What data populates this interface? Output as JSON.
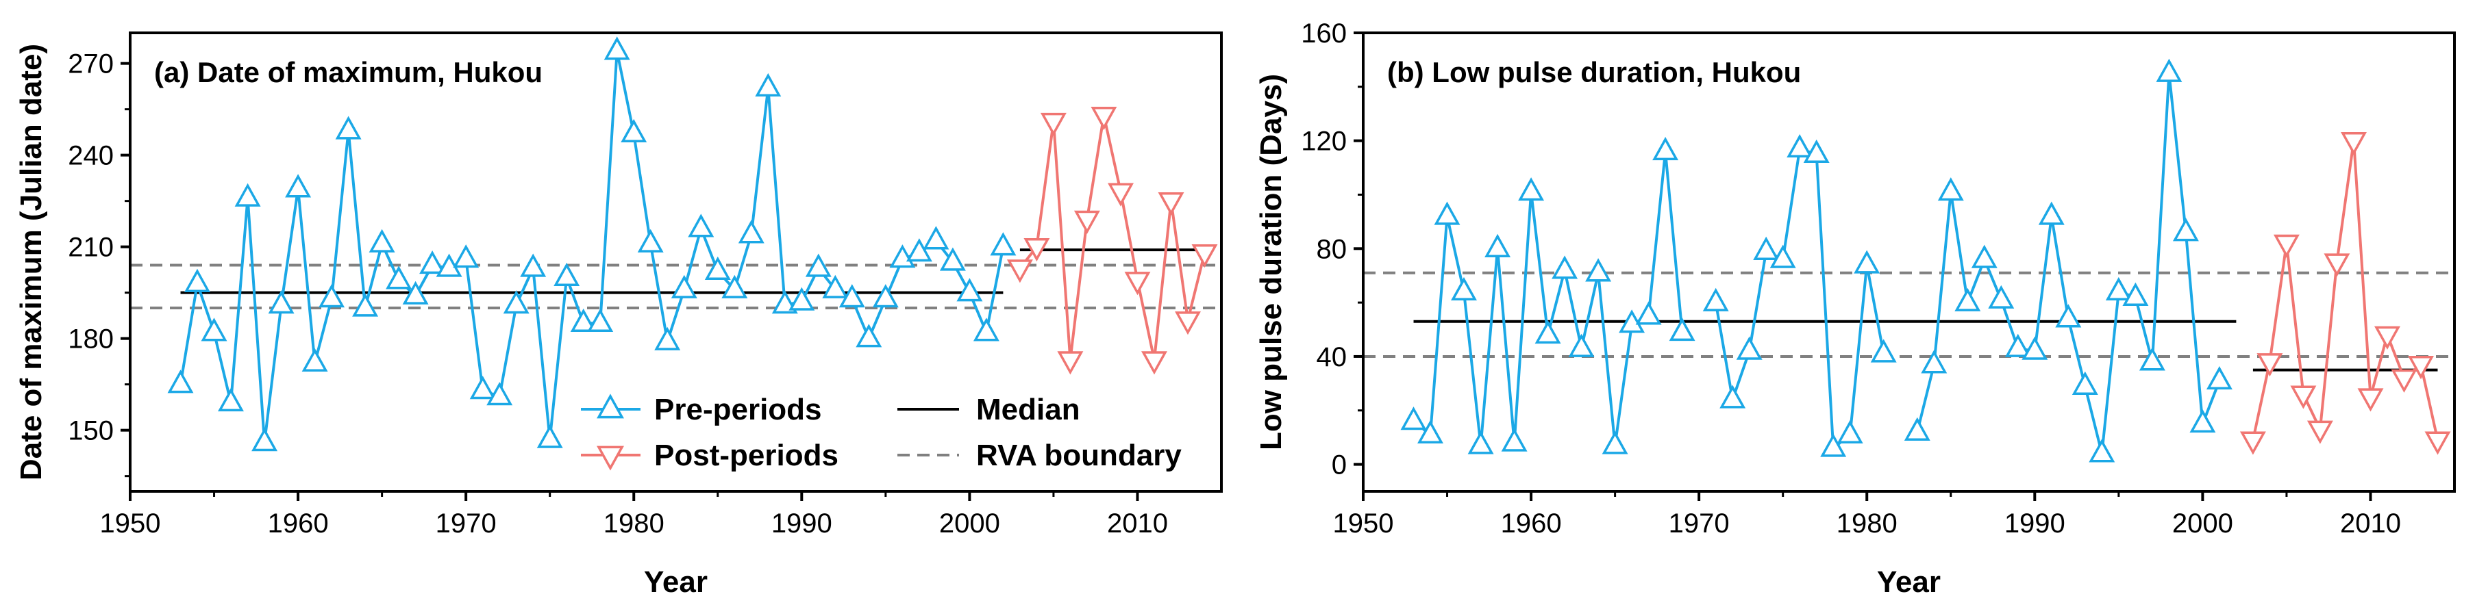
{
  "colors": {
    "pre": "#1ba8e6",
    "post": "#f07672",
    "median": "#000000",
    "rva": "#808080"
  },
  "legend": {
    "pre": "Pre-periods",
    "post": "Post-periods",
    "median": "Median",
    "rva": "RVA boundary"
  },
  "chart_data": [
    {
      "type": "line",
      "title": "(a) Date of maximum, Hukou",
      "xlabel": "Year",
      "ylabel": "Date of maximum (Julian date)",
      "xlim": [
        1950,
        2015
      ],
      "ylim": [
        130,
        280
      ],
      "xticks": [
        1950,
        1960,
        1970,
        1980,
        1990,
        2000,
        2010
      ],
      "yticks": [
        150,
        180,
        210,
        240,
        270
      ],
      "legend_position": "lower-right",
      "series": [
        {
          "name": "Pre-periods",
          "marker": "triangle-up",
          "x": [
            1953,
            1954,
            1955,
            1956,
            1957,
            1958,
            1959,
            1960,
            1961,
            1962,
            1963,
            1964,
            1965,
            1966,
            1967,
            1968,
            1969,
            1970,
            1971,
            1972,
            1973,
            1974,
            1975,
            1976,
            1977,
            1978,
            1979,
            1980,
            1981,
            1982,
            1983,
            1984,
            1985,
            1986,
            1987,
            1988,
            1989,
            1990,
            1991,
            1992,
            1993,
            1994,
            1995,
            1996,
            1997,
            1998,
            1999,
            2000,
            2001,
            2002
          ],
          "y": [
            165,
            198,
            182,
            159,
            226,
            146,
            191,
            229,
            172,
            193,
            248,
            190,
            211,
            199,
            194,
            204,
            203,
            206,
            163,
            161,
            191,
            203,
            147,
            200,
            185,
            185,
            274,
            247,
            211,
            179,
            196,
            216,
            202,
            196,
            214,
            262,
            191,
            192,
            203,
            196,
            193,
            180,
            193,
            206,
            208,
            212,
            205,
            195,
            182,
            210
          ]
        },
        {
          "name": "Post-periods",
          "marker": "triangle-down",
          "x": [
            2003,
            2004,
            2005,
            2006,
            2007,
            2008,
            2009,
            2010,
            2011,
            2012,
            2013,
            2014
          ],
          "y": [
            203,
            210,
            251,
            173,
            219,
            253,
            228,
            199,
            173,
            225,
            186,
            208
          ]
        }
      ],
      "median": [
        {
          "x": [
            1953,
            2002
          ],
          "y": 195
        },
        {
          "x": [
            2003,
            2014
          ],
          "y": 209
        }
      ],
      "rva_boundary": [
        190,
        204
      ]
    },
    {
      "type": "line",
      "title": "(b) Low pulse duration, Hukou",
      "xlabel": "Year",
      "ylabel": "Low pulse duration (Days)",
      "xlim": [
        1950,
        2015
      ],
      "ylim": [
        -10,
        160
      ],
      "xticks": [
        1950,
        1960,
        1970,
        1980,
        1990,
        2000,
        2010
      ],
      "yticks": [
        0,
        40,
        80,
        120,
        160
      ],
      "series": [
        {
          "name": "Pre-periods",
          "marker": "triangle-up",
          "segments": [
            {
              "x": [
                1953,
                1954,
                1955,
                1956,
                1957,
                1958,
                1959,
                1960,
                1961,
                1962,
                1963,
                1964,
                1965,
                1966,
                1967,
                1968,
                1969
              ],
              "y": [
                16,
                11,
                92,
                64,
                7,
                80,
                8,
                101,
                48,
                72,
                43,
                71,
                7,
                52,
                55,
                116,
                49
              ]
            },
            {
              "x": [
                1971,
                1972,
                1973,
                1974,
                1975,
                1976,
                1977,
                1978,
                1979,
                1980,
                1981
              ],
              "y": [
                60,
                24,
                42,
                79,
                76,
                117,
                115,
                6,
                11,
                74,
                41
              ]
            },
            {
              "x": [
                1983,
                1984,
                1985,
                1986,
                1987,
                1988,
                1989,
                1990,
                1991,
                1992,
                1993,
                1994,
                1995,
                1996,
                1997,
                1998,
                1999,
                2000,
                2001
              ],
              "y": [
                12,
                37,
                101,
                60,
                76,
                61,
                43,
                42,
                92,
                54,
                29,
                4,
                64,
                62,
                38,
                145,
                86,
                15,
                31
              ]
            }
          ]
        },
        {
          "name": "Post-periods",
          "marker": "triangle-down",
          "x": [
            2003,
            2004,
            2005,
            2006,
            2007,
            2008,
            2009,
            2010,
            2011,
            2012,
            2013,
            2014
          ],
          "y": [
            9,
            38,
            82,
            26,
            13,
            75,
            120,
            25,
            48,
            32,
            37,
            9
          ]
        }
      ],
      "median": [
        {
          "x": [
            1953,
            2002
          ],
          "y": 53
        },
        {
          "x": [
            2003,
            2014
          ],
          "y": 35
        }
      ],
      "rva_boundary": [
        40,
        71
      ]
    }
  ]
}
